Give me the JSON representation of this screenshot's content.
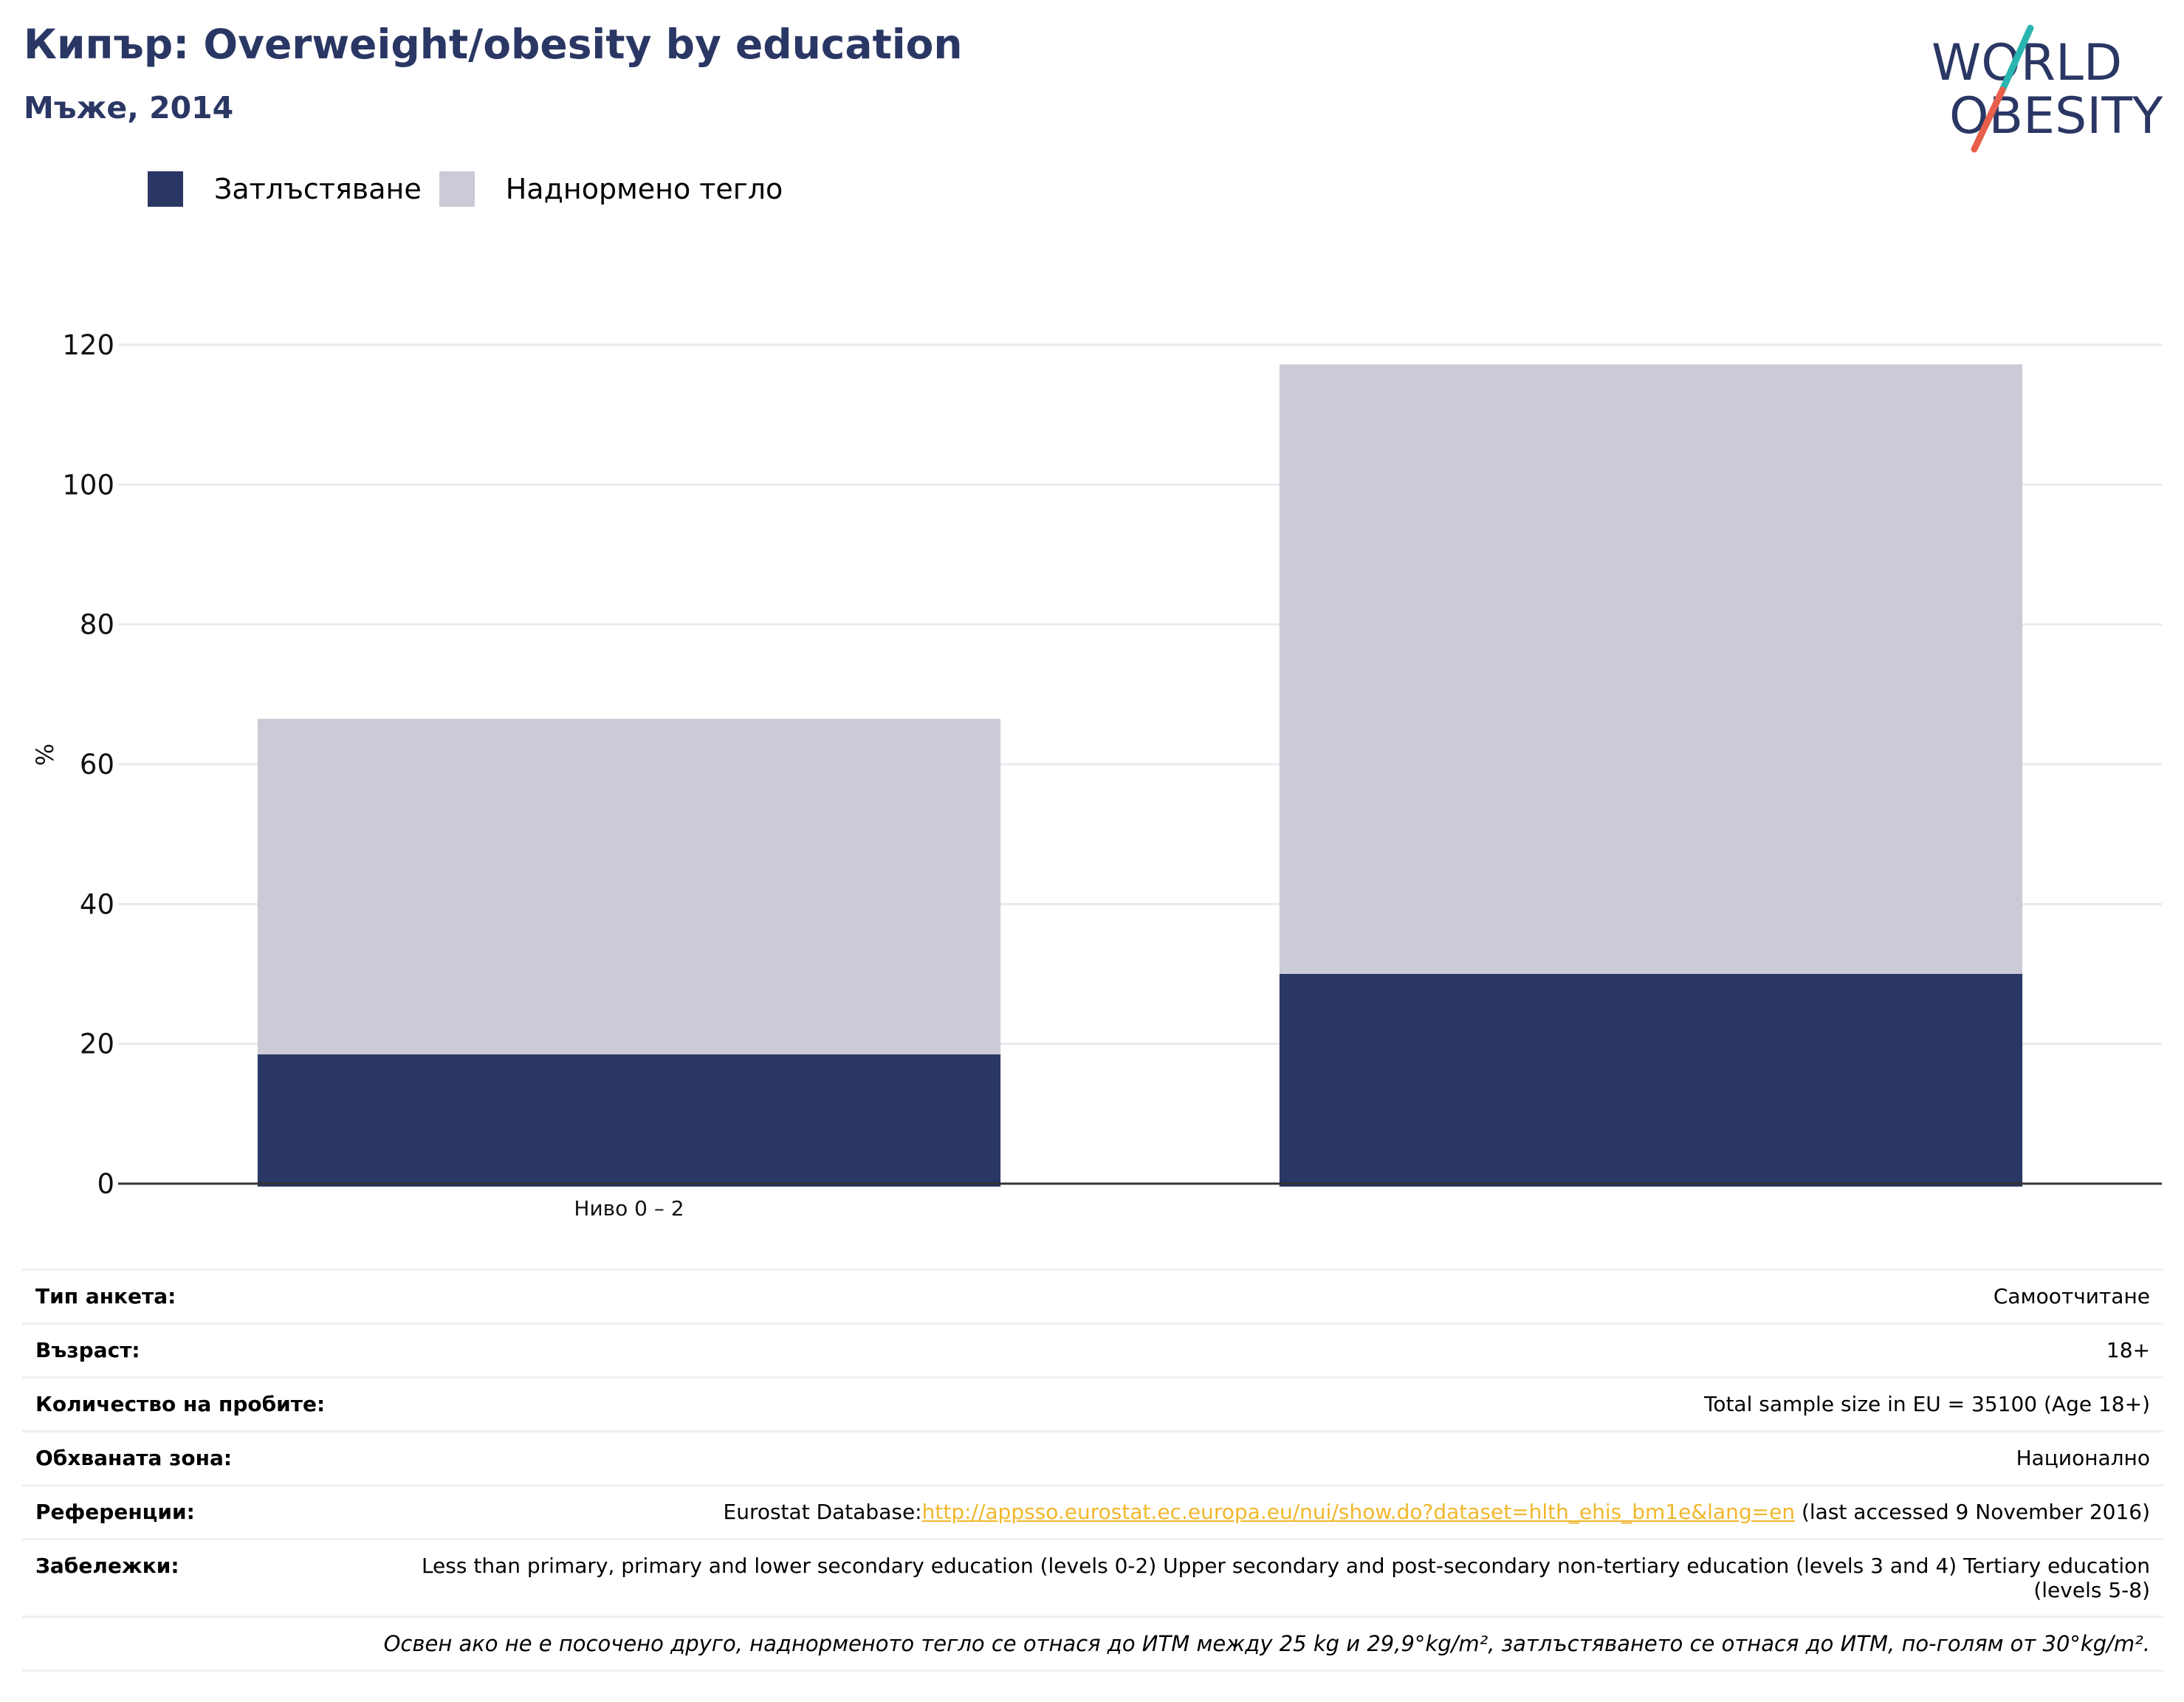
{
  "header": {
    "title": "Кипър: Overweight/obesity by education",
    "subtitle": "Мъже, 2014"
  },
  "logo": {
    "line1": "WORLD",
    "line2": "OBESITY"
  },
  "colors": {
    "obesity": "#2a3764",
    "overweight": "#cacbd6",
    "title": "#2a3764",
    "link": "#f1b72b"
  },
  "chart_data": {
    "type": "bar",
    "stacked": true,
    "categories": [
      "Ниво 0 – 2",
      ""
    ],
    "series": [
      {
        "name": "Затлъстяване",
        "color": "#2a3764",
        "values": [
          18.5,
          30
        ]
      },
      {
        "name": "Наднормено тегло",
        "color": "#cacbd6",
        "values": [
          48,
          87.2
        ]
      }
    ],
    "ylabel": "%",
    "ylim": [
      0,
      120
    ],
    "yticks": [
      0,
      20,
      40,
      60,
      80,
      100,
      120
    ],
    "grid": true,
    "legend": "top-left"
  },
  "info": {
    "rows": [
      {
        "label": "Тип анкета:",
        "value": "Самоотчитане"
      },
      {
        "label": "Възраст:",
        "value": "18+"
      },
      {
        "label": "Количество на пробите:",
        "value": "Total sample size in EU = 35100 (Age 18+)"
      },
      {
        "label": "Обхваната зона:",
        "value": "Национално"
      }
    ],
    "references": {
      "label": "Референции:",
      "prefix": "Eurostat Database:",
      "link": "http://appsso.eurostat.ec.europa.eu/nui/show.do?dataset=hlth_ehis_bm1e&lang=en",
      "suffix": " (last accessed 9 November 2016)"
    },
    "notes": {
      "label": "Забележки:",
      "value": "Less than primary, primary and lower secondary education (levels 0-2) Upper secondary and post-secondary non-tertiary education (levels 3 and 4) Tertiary education (levels 5-8)"
    },
    "footnote": "Освен ако не е посочено друго, наднорменото тегло се отнася до ИТМ между 25 kg и 29,9°kg/m², затлъстяването се отнася до ИТМ, по-голям от 30°kg/m²."
  }
}
